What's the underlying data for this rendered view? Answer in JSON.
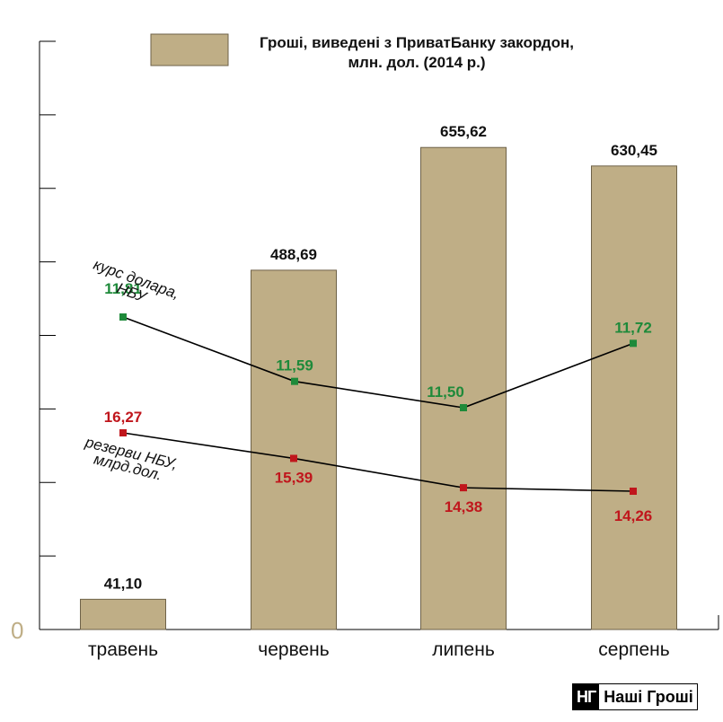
{
  "chart_data": {
    "type": "bar",
    "legend": "Гроші, виведені з ПриватБанку закордон,\nмлн. дол. (2014 р.)",
    "categories": [
      "травень",
      "червень",
      "липень",
      "серпень"
    ],
    "values": [
      41.1,
      488.69,
      655.62,
      630.45
    ],
    "value_labels": [
      "41,10",
      "488,69",
      "655,62",
      "630,45"
    ],
    "zero_label": "0",
    "ylim": [
      0,
      800
    ],
    "legend_position": "top",
    "grid": false,
    "lines": [
      {
        "name": "курс долара,\nНБУ",
        "color": "#1e8a3a",
        "values": [
          11.81,
          11.59,
          11.5,
          11.72
        ],
        "labels": [
          "11,81",
          "11,59",
          "11,50",
          "11,72"
        ]
      },
      {
        "name": "резерви НБУ,\nмлрд.дол.",
        "color": "#c0161c",
        "values": [
          16.27,
          15.39,
          14.38,
          14.26
        ],
        "labels": [
          "16,27",
          "15,39",
          "14,38",
          "14,26"
        ]
      }
    ]
  },
  "logo": {
    "mark": "НГ",
    "text": "Наші Гроші"
  }
}
